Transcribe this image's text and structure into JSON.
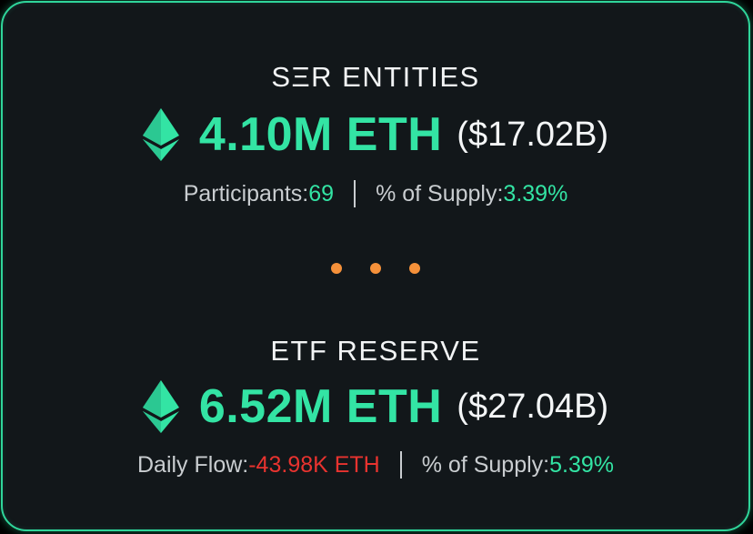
{
  "colors": {
    "accent": "#33e4a4",
    "negative": "#e8332f",
    "dots": "#f5913a",
    "border": "#2fd59a",
    "background": "#12171a"
  },
  "ser": {
    "title": "SΞR ENTITIES",
    "amount": "4.10M ETH",
    "usd": "($17.02B)",
    "icon": "ethereum-icon",
    "stat1_label": "Participants: ",
    "stat1_value": "69",
    "stat2_label": "% of Supply: ",
    "stat2_value": "3.39%"
  },
  "etf": {
    "title": "ETF RESERVE",
    "amount": "6.52M ETH",
    "usd": "($27.04B)",
    "icon": "ethereum-icon",
    "stat1_label": "Daily Flow: ",
    "stat1_value": "-43.98K ETH",
    "stat2_label": "% of Supply: ",
    "stat2_value": "5.39%"
  },
  "separator": {
    "icon": "ellipsis-dots"
  }
}
